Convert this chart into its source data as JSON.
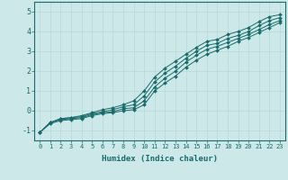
{
  "xlabel": "Humidex (Indice chaleur)",
  "ylabel": "",
  "xlim": [
    -0.5,
    23.5
  ],
  "ylim": [
    -1.5,
    5.5
  ],
  "yticks": [
    -1,
    0,
    1,
    2,
    3,
    4,
    5
  ],
  "xticks": [
    0,
    1,
    2,
    3,
    4,
    5,
    6,
    7,
    8,
    9,
    10,
    11,
    12,
    13,
    14,
    15,
    16,
    17,
    18,
    19,
    20,
    21,
    22,
    23
  ],
  "background_color": "#cce8e8",
  "line_color": "#1a6b6b",
  "grid_color": "#b8d8d8",
  "lines": [
    [
      -1.1,
      -0.6,
      -0.4,
      -0.35,
      -0.25,
      -0.1,
      0.05,
      0.15,
      0.3,
      0.5,
      1.0,
      1.7,
      2.15,
      2.5,
      2.85,
      3.2,
      3.5,
      3.6,
      3.85,
      4.0,
      4.2,
      4.5,
      4.75,
      4.85
    ],
    [
      -1.1,
      -0.6,
      -0.4,
      -0.35,
      -0.3,
      -0.15,
      -0.05,
      0.05,
      0.2,
      0.3,
      0.75,
      1.45,
      1.9,
      2.25,
      2.65,
      3.0,
      3.3,
      3.4,
      3.65,
      3.8,
      4.0,
      4.3,
      4.55,
      4.7
    ],
    [
      -1.1,
      -0.6,
      -0.45,
      -0.4,
      -0.35,
      -0.2,
      -0.1,
      -0.05,
      0.1,
      0.15,
      0.5,
      1.2,
      1.65,
      2.0,
      2.45,
      2.8,
      3.1,
      3.25,
      3.45,
      3.65,
      3.85,
      4.1,
      4.35,
      4.55
    ],
    [
      -1.1,
      -0.65,
      -0.5,
      -0.45,
      -0.4,
      -0.25,
      -0.15,
      -0.1,
      0.0,
      0.05,
      0.3,
      1.0,
      1.4,
      1.75,
      2.2,
      2.55,
      2.85,
      3.05,
      3.25,
      3.5,
      3.7,
      3.95,
      4.2,
      4.45
    ]
  ]
}
